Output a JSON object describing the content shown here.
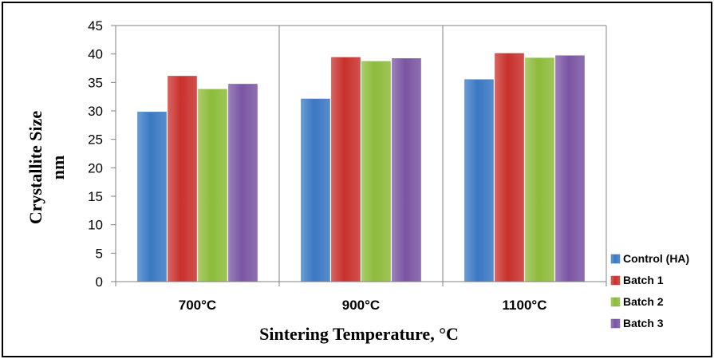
{
  "chart_data": {
    "type": "bar",
    "categories": [
      "700°C",
      "900°C",
      "1100°C"
    ],
    "series": [
      {
        "name": "Control (HA)",
        "values": [
          29.8,
          32.1,
          35.5
        ],
        "color": "#3a78c3"
      },
      {
        "name": "Batch 1",
        "values": [
          36.1,
          39.4,
          40.1
        ],
        "color": "#c9302c"
      },
      {
        "name": "Batch 2",
        "values": [
          33.8,
          38.7,
          39.3
        ],
        "color": "#8dbb3a"
      },
      {
        "name": "Batch 3",
        "values": [
          34.7,
          39.2,
          39.7
        ],
        "color": "#7a55a3"
      }
    ],
    "xlabel": "Sintering Temperature, °C",
    "ylabel": [
      "Crystallite Size",
      "nm"
    ],
    "ylim": [
      0,
      45
    ],
    "yticks": [
      "0",
      "5",
      "10",
      "15",
      "20",
      "25",
      "30",
      "35",
      "40",
      "45"
    ],
    "grid": "vertical separators between categories",
    "legend_position": "right"
  }
}
